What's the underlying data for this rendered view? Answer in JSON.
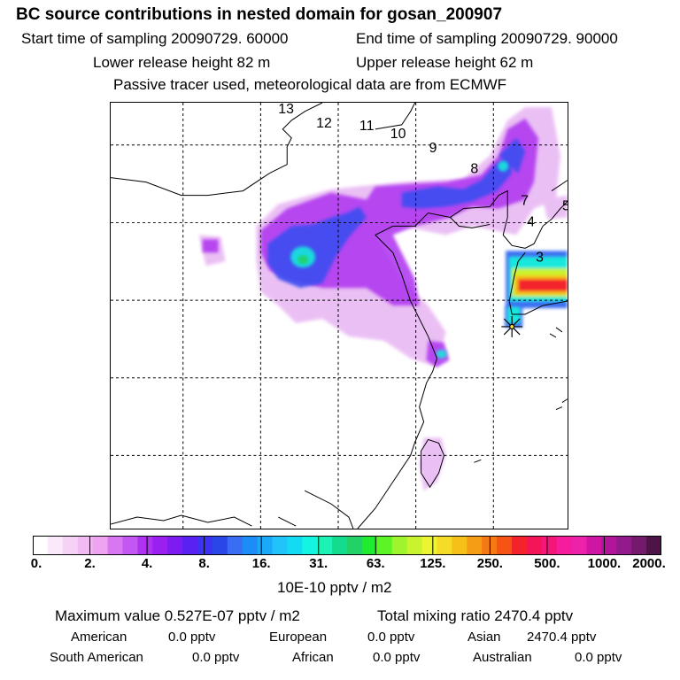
{
  "header": {
    "title": "BC  source contributions in nested domain for gosan_200907",
    "start_time": "Start time of sampling 20090729. 60000",
    "end_time": "End time of sampling 20090729. 90000",
    "lower_height": "Lower release height   82 m",
    "upper_height": "Upper release height   62 m",
    "tracer_note": "Passive tracer used, meteorological data are from ECMWF"
  },
  "chart_data": {
    "type": "heatmap",
    "title": "BC  source contributions in nested domain for gosan_200907",
    "colorbar_label": "10E-10 pptv / m2",
    "colorbar_ticks": [
      "0.",
      "2.",
      "4.",
      "8.",
      "16.",
      "31.",
      "63.",
      "125.",
      "250.",
      "500.",
      "1000.",
      "2000."
    ],
    "colorbar_colors": [
      "#ffffff",
      "#fbe8fb",
      "#f6d2f6",
      "#f2baf2",
      "#eea4f0",
      "#d977f2",
      "#c357f2",
      "#ad33f0",
      "#9a1ff0",
      "#7c1cf2",
      "#5a22f2",
      "#3c33f0",
      "#2a45e8",
      "#3a6ef2",
      "#1c8cf6",
      "#19a9f8",
      "#22c2fb",
      "#13dcf2",
      "#13f5e2",
      "#1df2b6",
      "#14dc8e",
      "#22d266",
      "#1fec2f",
      "#5cf424",
      "#9ef52d",
      "#caf32f",
      "#ecf530",
      "#f5dc28",
      "#f5c018",
      "#f59d14",
      "#f57a14",
      "#f55414",
      "#f4222a",
      "#f41458",
      "#f41678",
      "#f51c9d",
      "#ee22aa",
      "#cf15a2",
      "#b2149a",
      "#931a8a",
      "#731a6c",
      "#4e1448"
    ],
    "source_marker": "Gosan station (star)",
    "trajectory_labels": [
      "13",
      "12",
      "11",
      "10",
      "9",
      "8",
      "7",
      "4",
      "5",
      "3"
    ],
    "max_value": "0.527E-07",
    "total_mixing_ratio": "2470.4",
    "units": "pptv / m2",
    "regions": [
      {
        "name": "American",
        "value": "0.0 pptv"
      },
      {
        "name": "European",
        "value": "0.0 pptv"
      },
      {
        "name": "Asian",
        "value": "2470.4 pptv"
      },
      {
        "name": "South American",
        "value": "0.0 pptv"
      },
      {
        "name": "African",
        "value": "0.0 pptv"
      },
      {
        "name": "Australian",
        "value": "0.0 pptv"
      }
    ]
  },
  "footer": {
    "max_text": "Maximum value  0.527E-07 pptv / m2",
    "total_text": "Total mixing ratio     2470.4 pptv"
  }
}
